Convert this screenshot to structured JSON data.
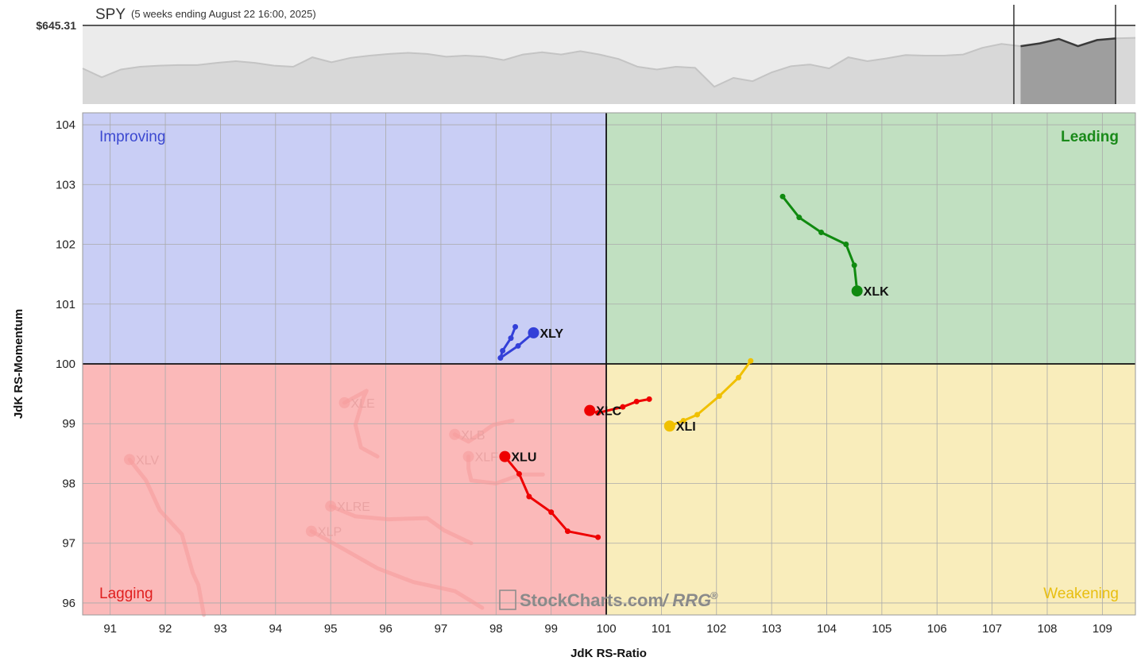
{
  "header": {
    "symbol": "SPY",
    "subtitle": "(5 weeks ending August 22 16:00, 2025)",
    "price_label": "$645.31"
  },
  "watermark": {
    "brand": "StockCharts.com",
    "product": "/ RRG",
    "reg": "®"
  },
  "colors": {
    "improving_bg": "#c9cef5",
    "leading_bg": "#c1e0c1",
    "lagging_bg": "#fbb9b9",
    "weakening_bg": "#f9edbb",
    "improving_text": "#3b48d0",
    "leading_text": "#1a8a1a",
    "lagging_text": "#e02020",
    "weakening_text": "#e8be10",
    "xly": "#3340d8",
    "xlk": "#108a10",
    "xlc": "#ee0000",
    "xlu": "#ee0000",
    "xli": "#f0c000",
    "faded": "#f59a9a"
  },
  "chart_data": [
    {
      "type": "line",
      "title": "SPY",
      "subtitle": "(5 weeks ending August 22 16:00, 2025)",
      "last_value_label": "$645.31",
      "description_of_scale": "relative only; no tick labels",
      "values": [
        0.47,
        0.31,
        0.45,
        0.5,
        0.52,
        0.53,
        0.53,
        0.57,
        0.6,
        0.57,
        0.52,
        0.5,
        0.67,
        0.58,
        0.66,
        0.7,
        0.73,
        0.75,
        0.73,
        0.68,
        0.7,
        0.68,
        0.62,
        0.72,
        0.76,
        0.72,
        0.78,
        0.72,
        0.64,
        0.5,
        0.45,
        0.5,
        0.48,
        0.14,
        0.3,
        0.24,
        0.4,
        0.51,
        0.54,
        0.47,
        0.67,
        0.6,
        0.65,
        0.71,
        0.7,
        0.7,
        0.72,
        0.84,
        0.91,
        0.87,
        0.92,
        1.0,
        0.87,
        0.98,
        1.01,
        1.02
      ],
      "highlight_window": "last 5 weeks"
    },
    {
      "type": "scatter",
      "title": "",
      "xlabel": "JdK RS-Ratio",
      "ylabel": "JdK RS-Momentum",
      "xlim": [
        90.5,
        109.6
      ],
      "ylim": [
        95.8,
        104.2
      ],
      "x_ticks": [
        91,
        92,
        93,
        94,
        95,
        96,
        97,
        98,
        99,
        100,
        101,
        102,
        103,
        104,
        105,
        106,
        107,
        108,
        109
      ],
      "y_ticks": [
        96,
        97,
        98,
        99,
        100,
        101,
        102,
        103,
        104
      ],
      "center": [
        100,
        100
      ],
      "grid": true,
      "quadrants": [
        {
          "name": "Improving",
          "position": "top-left"
        },
        {
          "name": "Leading",
          "position": "top-right"
        },
        {
          "name": "Lagging",
          "position": "bottom-left"
        },
        {
          "name": "Weakening",
          "position": "bottom-right"
        }
      ],
      "series": [
        {
          "name": "XLK",
          "color": "#108a10",
          "faded": false,
          "points": [
            [
              103.2,
              102.8
            ],
            [
              103.5,
              102.45
            ],
            [
              103.9,
              102.2
            ],
            [
              104.35,
              102.0
            ],
            [
              104.5,
              101.65
            ],
            [
              104.55,
              101.22
            ]
          ]
        },
        {
          "name": "XLY",
          "color": "#3340d8",
          "faded": false,
          "points": [
            [
              98.35,
              100.62
            ],
            [
              98.27,
              100.43
            ],
            [
              98.12,
              100.22
            ],
            [
              98.08,
              100.1
            ],
            [
              98.4,
              100.3
            ],
            [
              98.68,
              100.52
            ]
          ]
        },
        {
          "name": "XLC",
          "color": "#ee0000",
          "faded": false,
          "points": [
            [
              100.78,
              99.41
            ],
            [
              100.55,
              99.37
            ],
            [
              100.3,
              99.28
            ],
            [
              99.85,
              99.18
            ],
            [
              99.7,
              99.22
            ]
          ]
        },
        {
          "name": "XLU",
          "color": "#ee0000",
          "faded": false,
          "points": [
            [
              99.85,
              97.1
            ],
            [
              99.3,
              97.2
            ],
            [
              99.0,
              97.52
            ],
            [
              98.6,
              97.78
            ],
            [
              98.42,
              98.16
            ],
            [
              98.16,
              98.45
            ]
          ]
        },
        {
          "name": "XLI",
          "color": "#f0c000",
          "faded": false,
          "points": [
            [
              102.62,
              100.05
            ],
            [
              102.4,
              99.77
            ],
            [
              102.05,
              99.46
            ],
            [
              101.65,
              99.15
            ],
            [
              101.4,
              99.05
            ],
            [
              101.15,
              98.96
            ]
          ]
        },
        {
          "name": "XLE",
          "color": "#f59a9a",
          "faded": true,
          "points": [
            [
              95.85,
              98.45
            ],
            [
              95.55,
              98.6
            ],
            [
              95.45,
              98.98
            ],
            [
              95.6,
              99.45
            ],
            [
              95.65,
              99.55
            ],
            [
              95.25,
              99.35
            ]
          ]
        },
        {
          "name": "XLB",
          "color": "#f59a9a",
          "faded": true,
          "points": [
            [
              98.3,
              99.05
            ],
            [
              98.05,
              99.0
            ],
            [
              97.95,
              98.98
            ],
            [
              97.75,
              98.85
            ],
            [
              97.5,
              98.7
            ],
            [
              97.25,
              98.82
            ]
          ]
        },
        {
          "name": "XLF",
          "color": "#f59a9a",
          "faded": true,
          "points": [
            [
              98.85,
              98.15
            ],
            [
              98.45,
              98.15
            ],
            [
              98.0,
              98.0
            ],
            [
              97.55,
              98.05
            ],
            [
              97.5,
              98.25
            ],
            [
              97.5,
              98.45
            ]
          ]
        },
        {
          "name": "XLV",
          "color": "#f59a9a",
          "faded": true,
          "points": [
            [
              92.7,
              95.8
            ],
            [
              92.6,
              96.3
            ],
            [
              92.5,
              96.5
            ],
            [
              92.3,
              97.15
            ],
            [
              91.9,
              97.55
            ],
            [
              91.65,
              98.05
            ],
            [
              91.35,
              98.4
            ]
          ]
        },
        {
          "name": "XLRE",
          "color": "#f59a9a",
          "faded": true,
          "points": [
            [
              97.55,
              97.0
            ],
            [
              97.05,
              97.22
            ],
            [
              96.75,
              97.42
            ],
            [
              96.05,
              97.4
            ],
            [
              95.45,
              97.45
            ],
            [
              95.0,
              97.62
            ]
          ]
        },
        {
          "name": "XLP",
          "color": "#f59a9a",
          "faded": true,
          "points": [
            [
              97.75,
              95.92
            ],
            [
              97.25,
              96.2
            ],
            [
              96.5,
              96.35
            ],
            [
              95.85,
              96.58
            ],
            [
              95.2,
              96.92
            ],
            [
              94.85,
              97.1
            ],
            [
              94.65,
              97.2
            ]
          ]
        }
      ]
    }
  ]
}
